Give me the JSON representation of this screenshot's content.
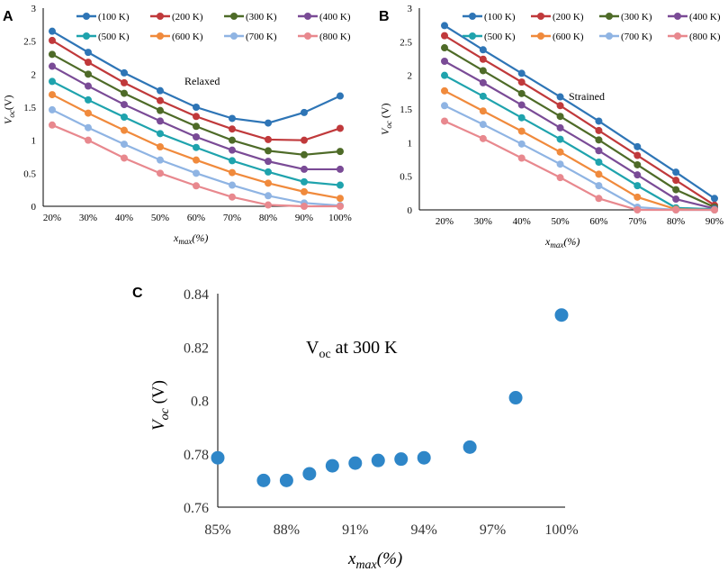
{
  "chart_data": [
    {
      "panel": "A",
      "type": "line",
      "annotation": "Relaxed",
      "xlabel": "x_max(%)",
      "ylabel": "V_oc(V)",
      "categories": [
        "20%",
        "30%",
        "40%",
        "50%",
        "60%",
        "70%",
        "80%",
        "90%",
        "100%"
      ],
      "ylim": [
        0,
        3
      ],
      "yticks": [
        "0",
        "0.5",
        "1",
        "1.5",
        "2",
        "2.5",
        "3"
      ],
      "legend_position": "top",
      "series": [
        {
          "name": "(100 K)",
          "color": "#2e75b6",
          "values": [
            2.65,
            2.33,
            2.02,
            1.75,
            1.5,
            1.33,
            1.26,
            1.42,
            1.67
          ]
        },
        {
          "name": "(200 K)",
          "color": "#c0393b",
          "values": [
            2.51,
            2.18,
            1.87,
            1.6,
            1.36,
            1.17,
            1.01,
            1.0,
            1.18
          ]
        },
        {
          "name": "(300 K)",
          "color": "#4e6b28",
          "values": [
            2.3,
            2.0,
            1.71,
            1.45,
            1.21,
            1.0,
            0.84,
            0.78,
            0.83
          ]
        },
        {
          "name": "(400 K)",
          "color": "#7a4b96",
          "values": [
            2.12,
            1.82,
            1.54,
            1.29,
            1.05,
            0.85,
            0.68,
            0.56,
            0.56
          ]
        },
        {
          "name": "(500 K)",
          "color": "#1fa3ad",
          "values": [
            1.89,
            1.61,
            1.35,
            1.1,
            0.89,
            0.69,
            0.52,
            0.37,
            0.32
          ]
        },
        {
          "name": "(600 K)",
          "color": "#f08a3c",
          "values": [
            1.69,
            1.41,
            1.15,
            0.9,
            0.7,
            0.51,
            0.35,
            0.22,
            0.12
          ]
        },
        {
          "name": "(700 K)",
          "color": "#8fb4e3",
          "values": [
            1.46,
            1.19,
            0.94,
            0.7,
            0.5,
            0.32,
            0.16,
            0.05,
            0.01
          ]
        },
        {
          "name": "(800 K)",
          "color": "#e8888e",
          "values": [
            1.23,
            1.0,
            0.73,
            0.5,
            0.31,
            0.14,
            0.02,
            0.0,
            0.0
          ]
        }
      ]
    },
    {
      "panel": "B",
      "type": "line",
      "annotation": "Strained",
      "xlabel": "x_max(%)",
      "ylabel": "V_oc (V)",
      "categories": [
        "20%",
        "30%",
        "40%",
        "50%",
        "60%",
        "70%",
        "80%",
        "90%"
      ],
      "ylim": [
        0,
        3
      ],
      "yticks": [
        "0",
        "0.5",
        "1",
        "1.5",
        "2",
        "2.5",
        "3"
      ],
      "legend_position": "top",
      "series": [
        {
          "name": "(100 K)",
          "color": "#2e75b6",
          "values": [
            2.74,
            2.38,
            2.03,
            1.68,
            1.32,
            0.94,
            0.56,
            0.17
          ]
        },
        {
          "name": "(200 K)",
          "color": "#c0393b",
          "values": [
            2.59,
            2.24,
            1.9,
            1.55,
            1.18,
            0.81,
            0.44,
            0.07
          ]
        },
        {
          "name": "(300 K)",
          "color": "#4e6b28",
          "values": [
            2.41,
            2.07,
            1.73,
            1.39,
            1.04,
            0.67,
            0.3,
            0.04
          ]
        },
        {
          "name": "(400 K)",
          "color": "#7a4b96",
          "values": [
            2.21,
            1.89,
            1.56,
            1.22,
            0.88,
            0.52,
            0.16,
            0.02
          ]
        },
        {
          "name": "(500 K)",
          "color": "#1fa3ad",
          "values": [
            2.0,
            1.69,
            1.37,
            1.05,
            0.71,
            0.36,
            0.03,
            0.01
          ]
        },
        {
          "name": "(600 K)",
          "color": "#f08a3c",
          "values": [
            1.77,
            1.47,
            1.17,
            0.86,
            0.53,
            0.19,
            0.01,
            0.0
          ]
        },
        {
          "name": "(700 K)",
          "color": "#8fb4e3",
          "values": [
            1.55,
            1.27,
            0.98,
            0.68,
            0.36,
            0.04,
            0.0,
            0.0
          ]
        },
        {
          "name": "(800 K)",
          "color": "#e8888e",
          "values": [
            1.32,
            1.06,
            0.77,
            0.48,
            0.17,
            0.0,
            0.0,
            0.0
          ]
        }
      ]
    },
    {
      "panel": "C",
      "type": "scatter",
      "title": "V_oc at 300 K",
      "xlabel": "x_max(%)",
      "ylabel": "V_oc (V)",
      "xlim": [
        85,
        100
      ],
      "ylim": [
        0.76,
        0.84
      ],
      "xticks": [
        "85%",
        "88%",
        "91%",
        "94%",
        "97%",
        "100%"
      ],
      "yticks": [
        "0.76",
        "0.78",
        "0.8",
        "0.82",
        "0.84"
      ],
      "color": "#2e86c8",
      "x": [
        85,
        87,
        88,
        89,
        90,
        91,
        92,
        93,
        94,
        96,
        98,
        100
      ],
      "y": [
        0.7785,
        0.77,
        0.77,
        0.7725,
        0.7755,
        0.7765,
        0.7775,
        0.778,
        0.7785,
        0.7825,
        0.801,
        0.832
      ]
    }
  ],
  "labels": {
    "panelA": "A",
    "panelB": "B",
    "panelC": "C",
    "xmax_main": "x",
    "xmax_sub": "max",
    "xmax_tail": "(%)",
    "voc_main": "V",
    "voc_sub": "oc",
    "voc_tail_A": "(V)",
    "voc_tail_B": " (V)",
    "voc_tail_C": " (V)",
    "c_title_main": "V",
    "c_title_sub": "oc",
    "c_title_tail": " at 300 K"
  }
}
